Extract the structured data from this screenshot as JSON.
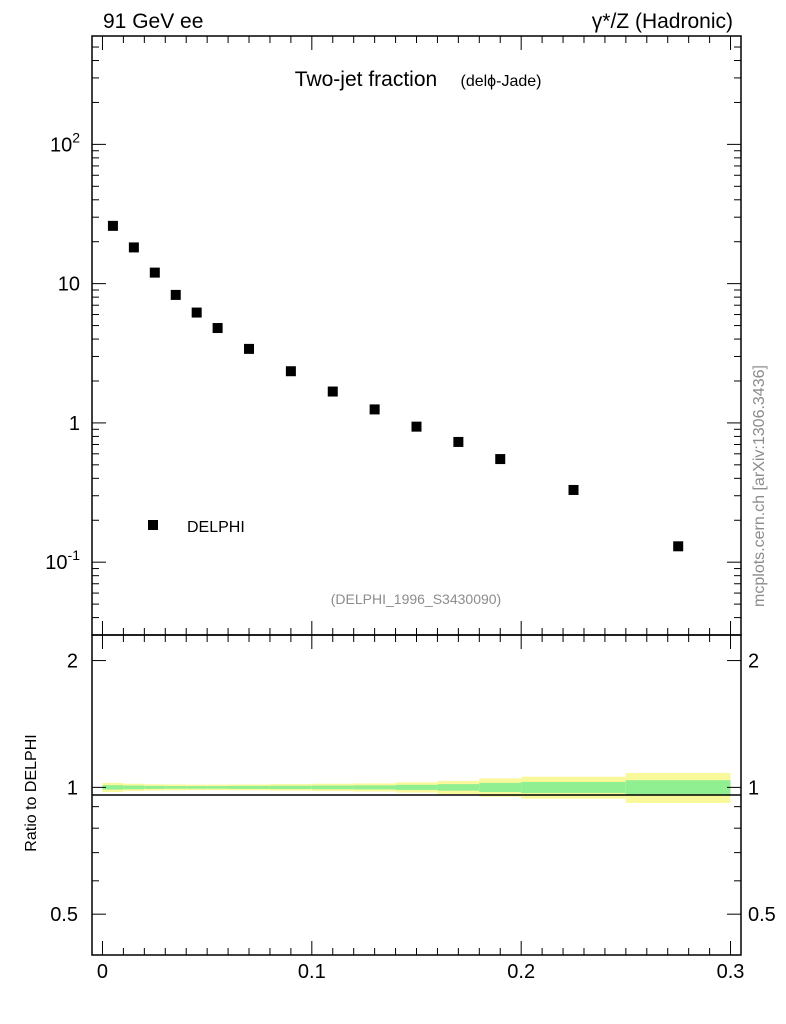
{
  "header": {
    "left": "91 GeV ee",
    "right": "γ*/Z (Hadronic)"
  },
  "side_label": "mcplots.cern.ch [arXiv:1306.3436]",
  "chart_data": [
    {
      "type": "scatter",
      "title": "Two-jet fraction",
      "subtitle": "(delϕ-Jade)",
      "annotation": "(DELPHI_1996_S3430090)",
      "yscale": "log",
      "xlim": [
        -0.005,
        0.305
      ],
      "ylim": [
        0.03,
        600
      ],
      "y_tick_labels": [
        "10^-1",
        "1",
        "10",
        "10^2"
      ],
      "legend": {
        "placement": "bottom-left",
        "entries": [
          "DELPHI"
        ]
      },
      "series": [
        {
          "name": "DELPHI",
          "marker": "square",
          "color": "#000000",
          "x": [
            0.005,
            0.015,
            0.025,
            0.035,
            0.045,
            0.055,
            0.07,
            0.09,
            0.11,
            0.13,
            0.15,
            0.17,
            0.19,
            0.225,
            0.275
          ],
          "y": [
            26,
            18.2,
            12,
            8.3,
            6.2,
            4.8,
            3.4,
            2.35,
            1.68,
            1.25,
            0.94,
            0.73,
            0.55,
            0.33,
            0.13
          ]
        }
      ]
    },
    {
      "type": "area",
      "ylabel": "Ratio to DELPHI",
      "xlim": [
        -0.005,
        0.305
      ],
      "ylim": [
        0.4,
        2.3
      ],
      "yscale": "log",
      "x_tick_labels": [
        "0",
        "0.1",
        "0.2",
        "0.3"
      ],
      "y_tick_labels": [
        "0.5",
        "1",
        "2"
      ],
      "reference_line": 1,
      "bands": {
        "bin_edges": [
          0,
          0.01,
          0.02,
          0.03,
          0.04,
          0.05,
          0.06,
          0.08,
          0.1,
          0.12,
          0.14,
          0.16,
          0.18,
          0.2,
          0.25,
          0.3
        ],
        "yellow_half_width": [
          0.025,
          0.02,
          0.017,
          0.016,
          0.015,
          0.015,
          0.016,
          0.018,
          0.02,
          0.022,
          0.028,
          0.036,
          0.05,
          0.06,
          0.082
        ],
        "green_half_width": [
          0.012,
          0.01,
          0.008,
          0.007,
          0.007,
          0.007,
          0.008,
          0.009,
          0.01,
          0.011,
          0.014,
          0.018,
          0.025,
          0.03,
          0.04
        ],
        "colors": {
          "outer": "#f9f99b",
          "inner": "#90ef90"
        }
      }
    }
  ]
}
